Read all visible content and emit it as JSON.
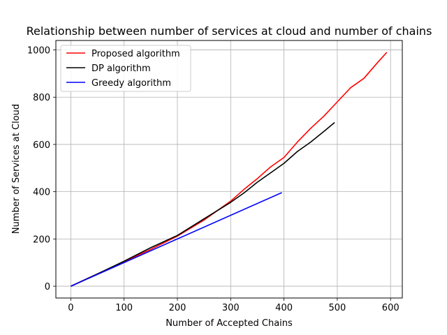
{
  "chart_data": {
    "type": "line",
    "title": "Relationship between number of services at cloud and number of chains",
    "xlabel": "Number of Accepted Chains",
    "ylabel": "Number of Services at Cloud",
    "xlim": [
      -28,
      622
    ],
    "ylim": [
      -50,
      1040
    ],
    "xticks": [
      0,
      100,
      200,
      300,
      400,
      500,
      600
    ],
    "yticks": [
      0,
      200,
      400,
      600,
      800,
      1000
    ],
    "grid": true,
    "legend_position": "top-left",
    "series": [
      {
        "name": "Proposed algorithm",
        "color": "#ff0000",
        "x": [
          0,
          50,
          100,
          150,
          200,
          250,
          300,
          325,
          350,
          375,
          400,
          425,
          450,
          475,
          500,
          525,
          550,
          575,
          593
        ],
        "y": [
          0,
          52,
          104,
          156,
          212,
          280,
          360,
          410,
          455,
          505,
          545,
          610,
          668,
          720,
          780,
          840,
          880,
          945,
          990
        ]
      },
      {
        "name": "DP algorithm",
        "color": "#000000",
        "x": [
          0,
          50,
          100,
          150,
          200,
          250,
          300,
          325,
          350,
          375,
          400,
          425,
          450,
          475,
          495
        ],
        "y": [
          0,
          52,
          106,
          163,
          215,
          285,
          355,
          395,
          440,
          480,
          520,
          570,
          610,
          655,
          693
        ]
      },
      {
        "name": "Greedy algorithm",
        "color": "#0000ff",
        "x": [
          0,
          396
        ],
        "y": [
          0,
          396
        ]
      }
    ]
  }
}
